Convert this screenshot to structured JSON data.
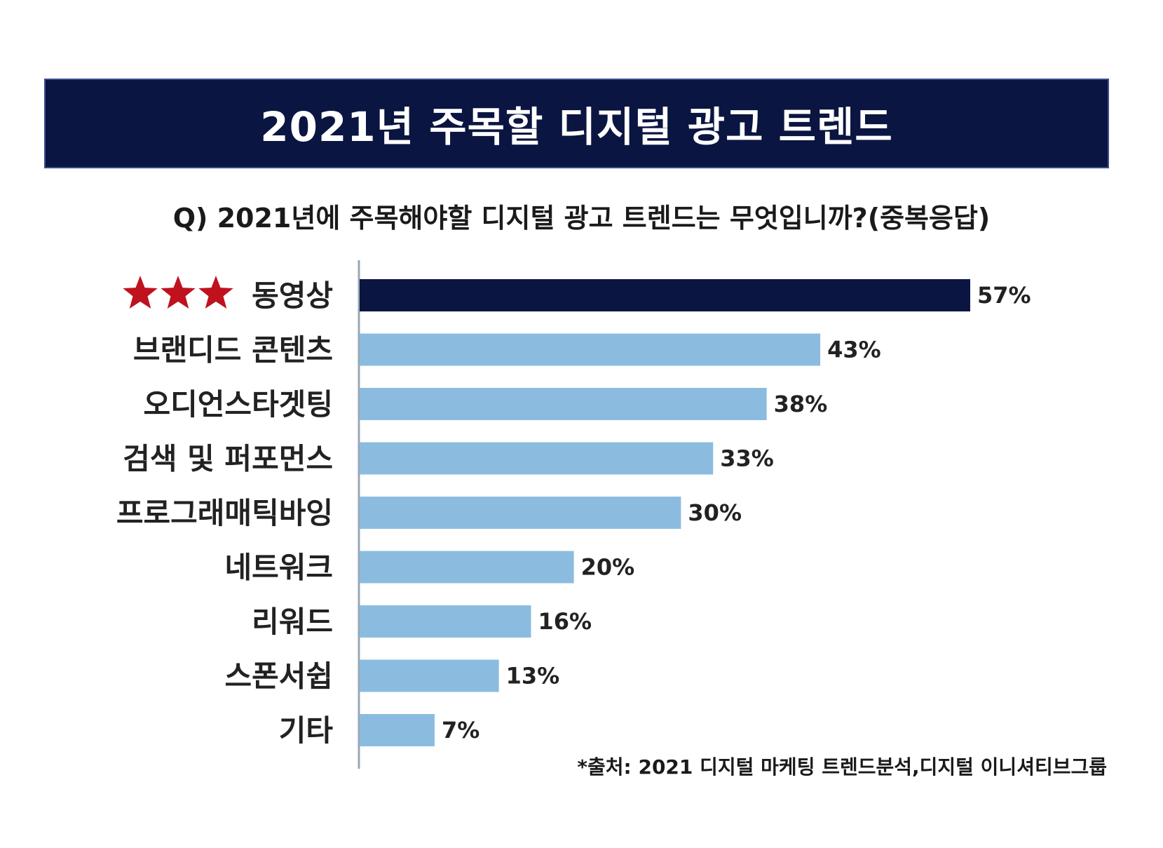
{
  "title": "2021년 주목할 디지털 광고 트렌드",
  "question": "Q) 2021년에 주목해야할 디지털 광고 트렌드는 무엇입니까?(중복응답)",
  "source": "*출처: 2021 디지털 마케팅 트렌드분석,디지털 이니셔티브그룹",
  "colors": {
    "banner": "#0b1541",
    "highlight_bar": "#0b1541",
    "bar": "#8bbcdf",
    "star": "#c0111f",
    "axis": "#9aa6b8"
  },
  "chart_data": {
    "type": "bar",
    "orientation": "horizontal",
    "categories": [
      "동영상",
      "브랜디드 콘텐츠",
      "오디언스타겟팅",
      "검색 및 퍼포먼스",
      "프로그래매틱바잉",
      "네트워크",
      "리워드",
      "스폰서쉽",
      "기타"
    ],
    "values": [
      57,
      43,
      38,
      33,
      30,
      20,
      16,
      13,
      7
    ],
    "value_labels": [
      "57%",
      "43%",
      "38%",
      "33%",
      "30%",
      "20%",
      "16%",
      "13%",
      "7%"
    ],
    "highlight_index": 0,
    "highlight_icon": "three-stars-icon",
    "unit": "%"
  }
}
